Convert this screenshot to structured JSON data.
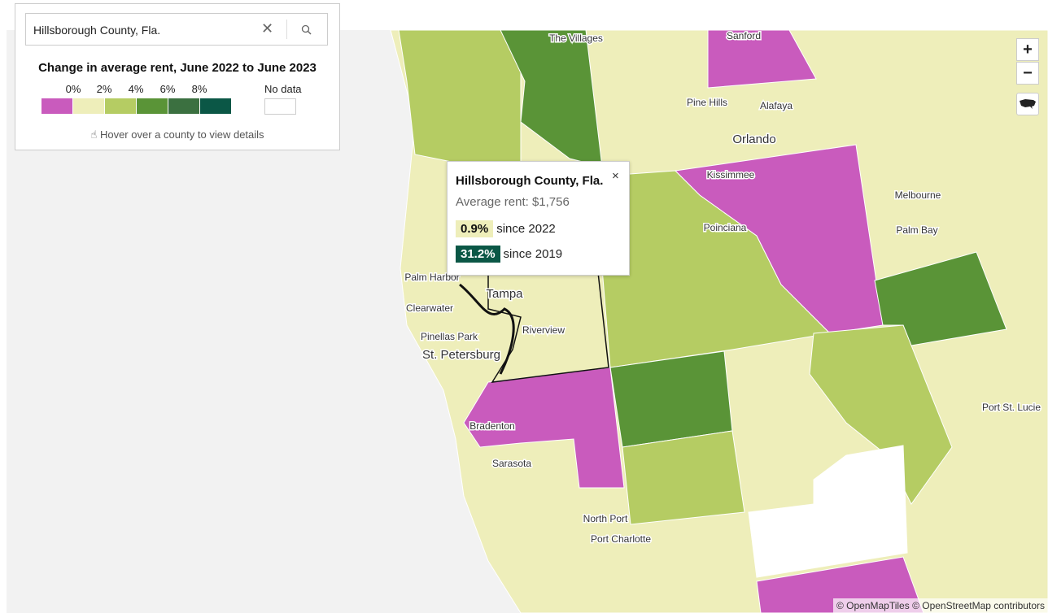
{
  "search": {
    "value": "Hillsborough County, Fla."
  },
  "legend": {
    "title": "Change in average rent, June 2022 to June 2023",
    "ticks": [
      "0%",
      "2%",
      "4%",
      "6%",
      "8%"
    ],
    "no_data": "No data",
    "hint": "Hover over a county to view details"
  },
  "tooltip": {
    "title": "Hillsborough County, Fla.",
    "close": "×",
    "average_rent": "Average rent: $1,756",
    "changes": [
      {
        "value": "0.9%",
        "label": "since 2022"
      },
      {
        "value": "31.2%",
        "label": "since 2019"
      }
    ]
  },
  "map": {
    "labels": [
      "The Villages",
      "Sanford",
      "Pine Hills",
      "Alafaya",
      "Orlando",
      "Kissimmee",
      "Melbourne",
      "Poinciana",
      "Palm Bay",
      "Palm Harbor",
      "Tampa",
      "Clearwater",
      "Riverview",
      "Pinellas Park",
      "St. Petersburg",
      "Bradenton",
      "Sarasota",
      "North Port",
      "Port Charlotte",
      "Port St. Lucie"
    ]
  },
  "controls": {
    "zoom_in": "+",
    "zoom_out": "−"
  },
  "attribution": "© OpenMapTiles © OpenStreetMap contributors"
}
